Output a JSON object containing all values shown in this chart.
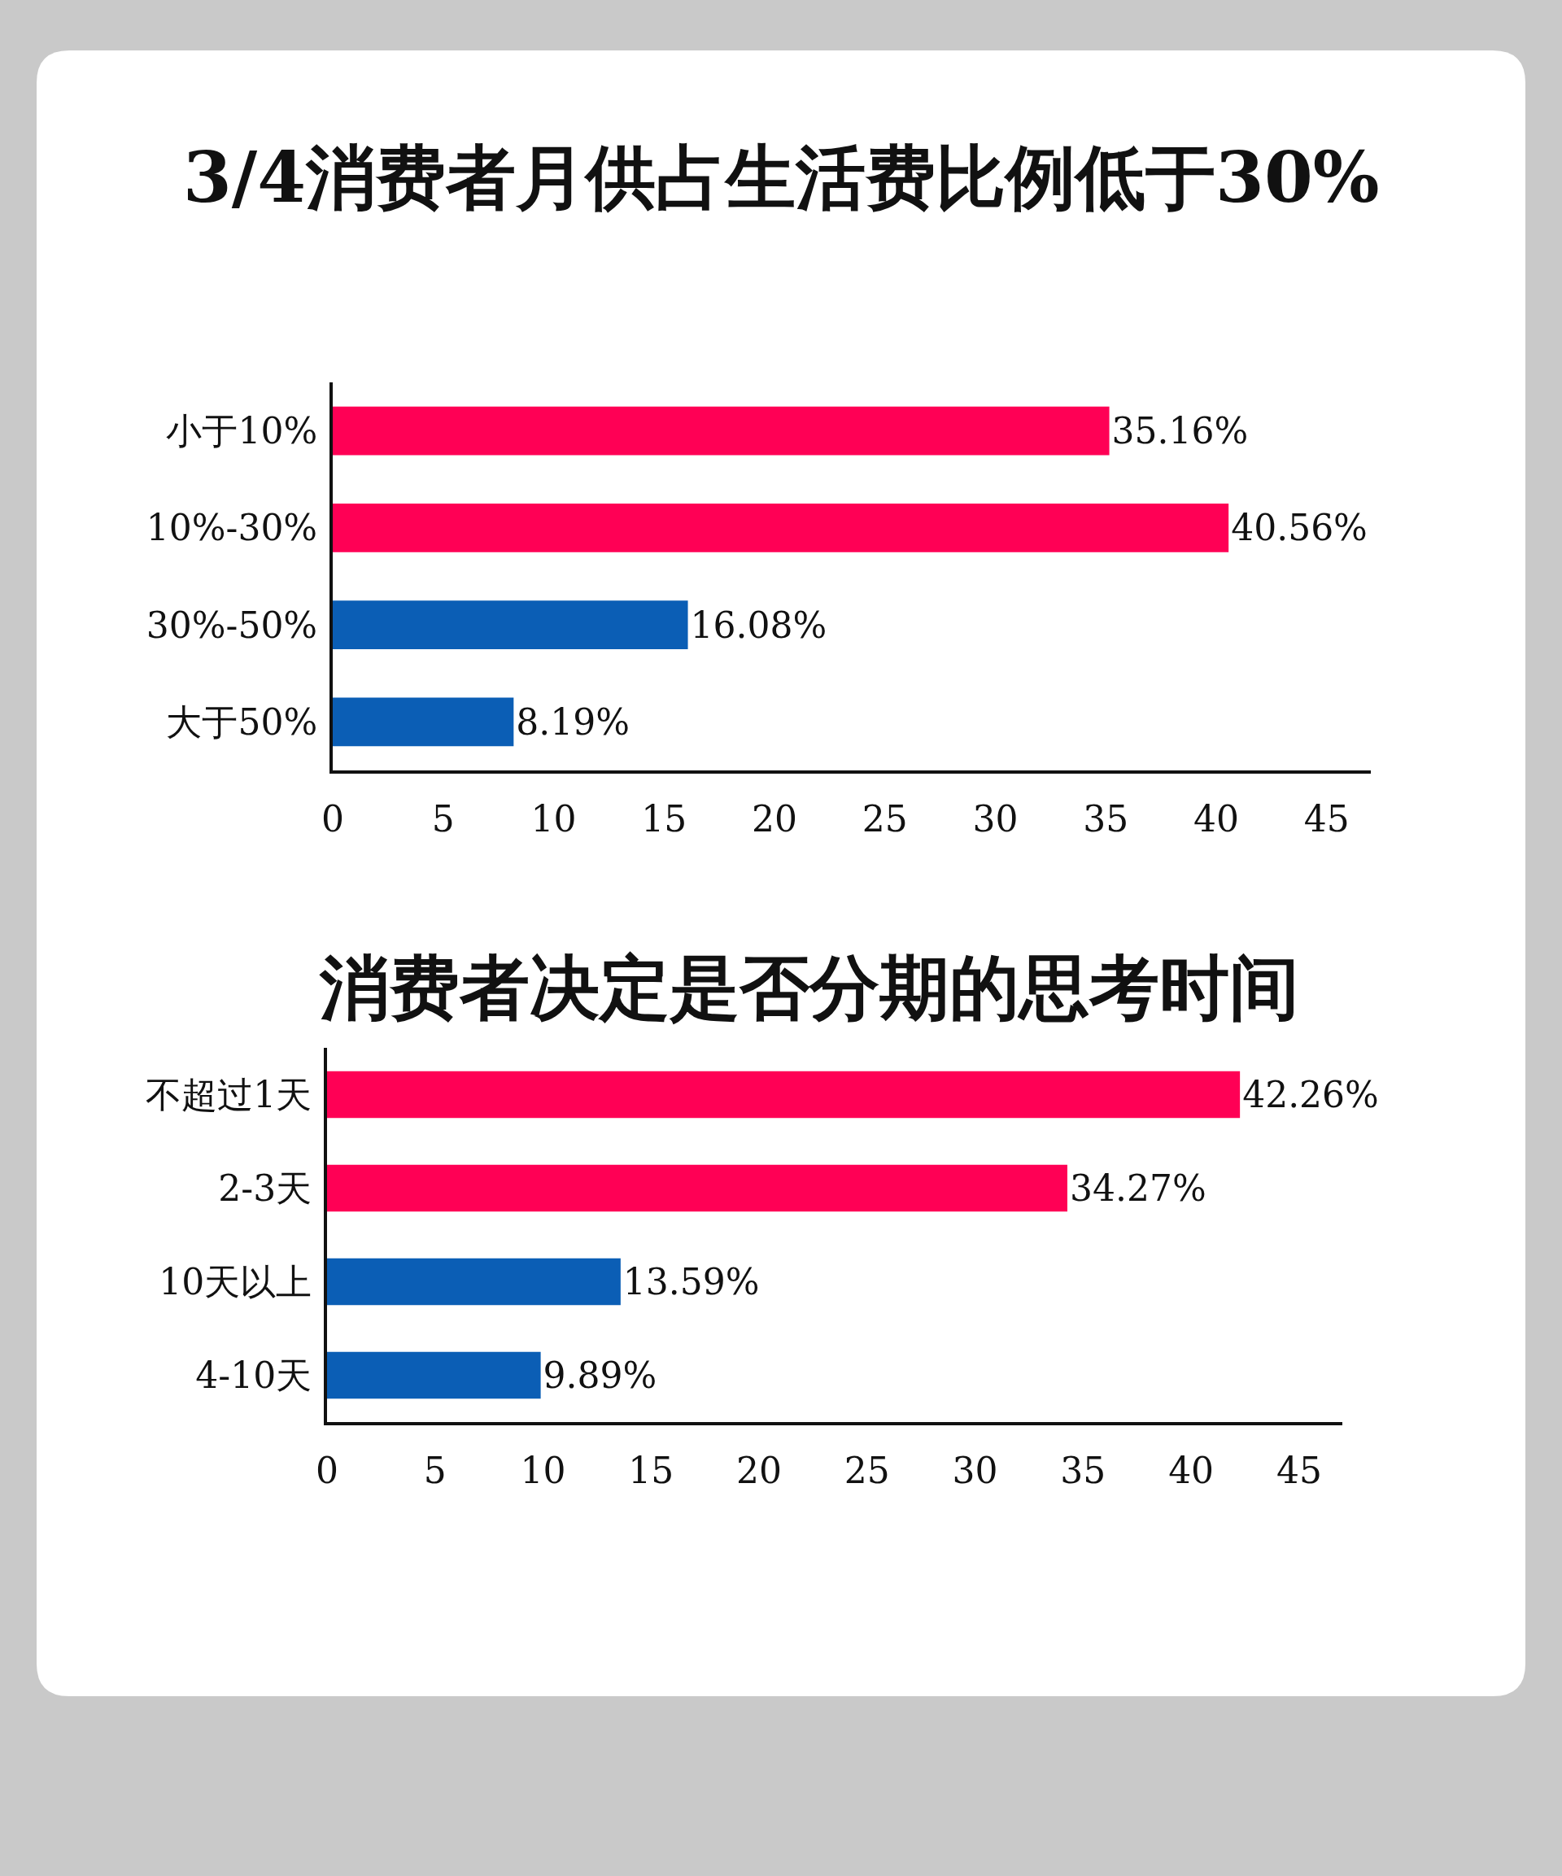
{
  "chart_data": [
    {
      "type": "bar",
      "orientation": "horizontal",
      "title": "3/4消费者月供占生活费比例低于30%",
      "categories": [
        "小于10%",
        "10%-30%",
        "30%-50%",
        "大于50%"
      ],
      "values": [
        35.16,
        40.56,
        16.08,
        8.19
      ],
      "colors": [
        "#ff0055",
        "#ff0055",
        "#0b5eb5",
        "#0b5eb5"
      ],
      "value_labels": [
        "35.16%",
        "40.56%",
        "16.08%",
        "8.19%"
      ],
      "xlim": [
        0,
        47
      ],
      "xticks": [
        0,
        5,
        10,
        15,
        20,
        25,
        30,
        35,
        40,
        45
      ]
    },
    {
      "type": "bar",
      "orientation": "horizontal",
      "title": "消费者决定是否分期的思考时间",
      "categories": [
        "不超过1天",
        "2-3天",
        "10天以上",
        "4-10天"
      ],
      "values": [
        42.26,
        34.27,
        13.59,
        9.89
      ],
      "colors": [
        "#ff0055",
        "#ff0055",
        "#0b5eb5",
        "#0b5eb5"
      ],
      "value_labels": [
        "42.26%",
        "34.27%",
        "13.59%",
        "9.89%"
      ],
      "xlim": [
        0,
        47
      ],
      "xticks": [
        0,
        5,
        10,
        15,
        20,
        25,
        30,
        35,
        40,
        45
      ]
    }
  ]
}
